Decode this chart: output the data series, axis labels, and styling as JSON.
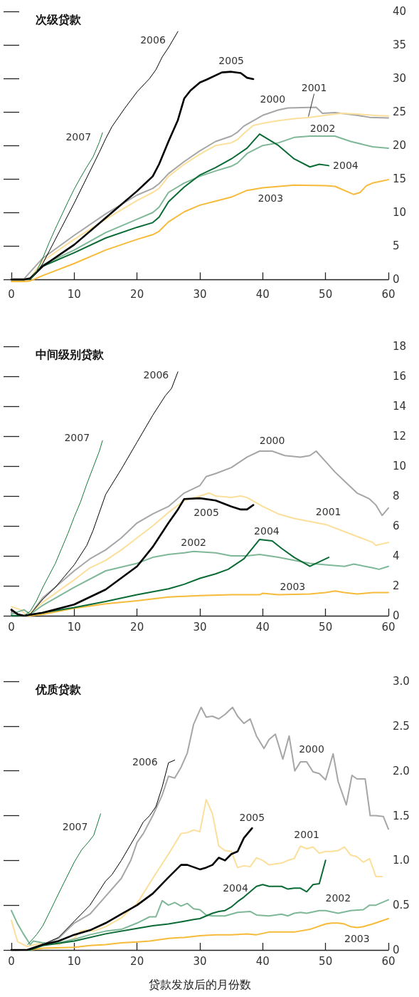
{
  "chart_data": [
    {
      "type": "line",
      "title": "次级贷款",
      "xlim": [
        0,
        60
      ],
      "xticks": [
        0,
        10,
        20,
        30,
        40,
        50,
        60
      ],
      "ylim": [
        -0.5,
        40
      ],
      "yticks": [
        0,
        5,
        10,
        15,
        20,
        25,
        30,
        35,
        40
      ],
      "grid": false,
      "legend": false,
      "marker": "none",
      "series": [
        {
          "name": "2000",
          "color": "#a6a6a6",
          "x": [
            0,
            2,
            5,
            10,
            15,
            20,
            22.5,
            23.5,
            25,
            27.5,
            30,
            32.5,
            35,
            36,
            37,
            40,
            42.5,
            44,
            48.5,
            49.5,
            51.5,
            55,
            57,
            60
          ],
          "values": [
            0.1,
            0.1,
            3.2,
            6.6,
            9.8,
            12.6,
            13.6,
            14.3,
            15.8,
            17.6,
            19.2,
            20.6,
            21.4,
            22,
            22.9,
            24.5,
            25.3,
            25.6,
            25.7,
            24.8,
            24.9,
            24.5,
            24.2,
            24.1
          ]
        },
        {
          "name": "2001",
          "color": "#fbdf9a",
          "x": [
            0,
            2,
            3,
            5,
            10,
            15,
            20,
            22.5,
            23.5,
            25,
            27.5,
            30,
            32.5,
            35,
            36,
            37,
            38.5,
            40,
            42.5,
            45,
            47.5,
            50,
            52.5,
            55,
            57.5,
            60
          ],
          "values": [
            -0.1,
            -0.1,
            0.2,
            2.8,
            6,
            9,
            11.8,
            13,
            13.6,
            15.4,
            17.2,
            18.7,
            20,
            20.4,
            20.9,
            21.8,
            23,
            23.3,
            23.7,
            24,
            24.2,
            24.5,
            24.8,
            24.7,
            24.5,
            24.4
          ]
        },
        {
          "name": "2002",
          "color": "#7fb898",
          "x": [
            0,
            2,
            3,
            5,
            10,
            15,
            20,
            22.5,
            23.5,
            25,
            27.5,
            30,
            32.5,
            35,
            36,
            37.5,
            40,
            42.5,
            45,
            47.5,
            51.5,
            54,
            57.5,
            60
          ],
          "values": [
            0,
            0,
            0.1,
            2.2,
            4.4,
            7,
            9,
            10,
            10.8,
            13,
            14.4,
            15.4,
            16.2,
            16.9,
            17.4,
            18.8,
            20,
            20.4,
            21.2,
            21.4,
            21.4,
            20.6,
            19.8,
            19.6
          ]
        },
        {
          "name": "2003",
          "color": "#f6bb3a",
          "x": [
            0,
            2,
            3,
            5,
            10,
            15,
            20,
            22.5,
            23.5,
            25,
            27.5,
            30,
            32.5,
            35,
            37.5,
            40,
            45,
            50,
            51.5,
            54.5,
            55.5,
            56.5,
            57.5,
            60
          ],
          "values": [
            -0.3,
            -0.3,
            -0.2,
            0.6,
            2.4,
            4.4,
            6,
            6.7,
            7.2,
            8.6,
            10.1,
            11.1,
            11.7,
            12.3,
            13.3,
            13.7,
            14.1,
            14,
            13.9,
            12.7,
            13,
            14,
            14.4,
            14.9
          ]
        },
        {
          "name": "2004",
          "color": "#0b6b35",
          "x": [
            0,
            2,
            3,
            5,
            10,
            15,
            20,
            22.5,
            23.5,
            25,
            27.5,
            30,
            32.5,
            35,
            37.5,
            39.5,
            42.5,
            45,
            47.5,
            49,
            50.5
          ],
          "values": [
            0,
            0,
            0.1,
            2,
            4,
            6.2,
            7.8,
            8.5,
            9.3,
            11.6,
            13.8,
            15.6,
            16.7,
            18,
            19.6,
            21.7,
            20,
            18,
            16.8,
            17.2,
            17
          ]
        },
        {
          "name": "2005",
          "color": "#000000",
          "x": [
            0,
            2,
            3,
            5,
            10,
            15,
            20,
            22.5,
            23.5,
            25,
            26.5,
            27.5,
            28.5,
            30,
            31,
            33.5,
            35,
            36.5,
            37.5,
            38.5
          ],
          "values": [
            0,
            0,
            0.2,
            2,
            5.2,
            9.2,
            13.2,
            15.4,
            17.2,
            20.6,
            23.8,
            27,
            28.2,
            29.4,
            29.8,
            30.9,
            31,
            30.8,
            30.1,
            29.9
          ]
        },
        {
          "name": "2006",
          "color": "#000000",
          "x": [
            3,
            4,
            5,
            6,
            7,
            8,
            9,
            10,
            12,
            14,
            15,
            16,
            18,
            20,
            22,
            23,
            24,
            25,
            26.5
          ],
          "values": [
            0,
            1,
            2.4,
            4.2,
            6,
            7.8,
            9.6,
            11.4,
            15.2,
            19,
            21,
            22.8,
            25.5,
            28,
            30,
            31.3,
            33.2,
            34.6,
            37
          ]
        },
        {
          "name": "2007",
          "color": "#157a3a",
          "x": [
            3,
            4,
            5,
            6,
            7,
            8,
            9,
            10,
            11,
            12,
            13,
            14,
            14.5
          ],
          "values": [
            0,
            1.2,
            3.2,
            5.5,
            7.6,
            9.6,
            11.6,
            13.5,
            15.2,
            16.8,
            18.3,
            20.5,
            21.9
          ]
        }
      ]
    },
    {
      "type": "line",
      "title": "中间级别贷款",
      "xlim": [
        0,
        60
      ],
      "xticks": [
        0,
        10,
        20,
        30,
        40,
        50,
        60
      ],
      "ylim": [
        0,
        18
      ],
      "yticks": [
        0,
        2,
        4,
        6,
        8,
        10,
        12,
        14,
        16,
        18
      ],
      "grid": false,
      "legend": false,
      "marker": "none",
      "series": [
        {
          "name": "2000",
          "color": "#a6a6a6",
          "x": [
            0,
            2,
            3,
            5,
            7.5,
            10,
            12.5,
            15,
            17.5,
            20,
            22.5,
            25,
            27.5,
            30,
            31,
            32.5,
            35,
            37.5,
            39.5,
            41.5,
            43.5,
            46,
            47.5,
            48.5,
            50,
            51.5,
            53,
            55,
            57,
            58,
            59,
            60
          ],
          "values": [
            0.2,
            0,
            0.1,
            1.2,
            2.1,
            3,
            3.8,
            4.4,
            5.2,
            6.2,
            6.8,
            7.3,
            8.2,
            8.7,
            9.3,
            9.5,
            9.9,
            10.6,
            11,
            11,
            10.7,
            10.6,
            10.7,
            11,
            10.3,
            9.6,
            9,
            8.2,
            7.8,
            7.4,
            6.7,
            7.2
          ]
        },
        {
          "name": "2001",
          "color": "#fbdf9a",
          "x": [
            0,
            1.5,
            2.5,
            5,
            10,
            12.5,
            15,
            17.5,
            20,
            22.5,
            25,
            27.5,
            30,
            31.5,
            32.5,
            35,
            36.5,
            37.5,
            40,
            42.5,
            45,
            47.5,
            50,
            52.5,
            55,
            57.5,
            58,
            60
          ],
          "values": [
            0.6,
            0.4,
            0,
            0.9,
            2.4,
            3.2,
            3.7,
            4.4,
            5.2,
            6,
            6.9,
            7.7,
            8,
            8.2,
            8,
            7.9,
            8,
            7.9,
            7.3,
            6.8,
            6.5,
            6.3,
            6.1,
            5.7,
            5.3,
            4.9,
            4.7,
            4.9
          ]
        },
        {
          "name": "2002",
          "color": "#7fb898",
          "x": [
            0,
            2,
            3,
            5,
            10,
            15,
            20,
            22.5,
            25,
            27.5,
            29,
            32.5,
            35,
            37.5,
            39.5,
            42.5,
            45,
            47.5,
            50,
            53,
            54.5,
            57.5,
            58.5,
            60
          ],
          "values": [
            0.1,
            0.4,
            0.1,
            0.7,
            1.9,
            3,
            3.5,
            3.9,
            4.1,
            4.2,
            4.3,
            4.2,
            4,
            4,
            4.1,
            3.9,
            3.7,
            3.5,
            3.4,
            3.3,
            3.45,
            3.2,
            3.1,
            3.3
          ]
        },
        {
          "name": "2003",
          "color": "#f6bb3a",
          "x": [
            0,
            3,
            5,
            10,
            15,
            20,
            25,
            30,
            35,
            39.5,
            40,
            42.5,
            47.5,
            50,
            51.5,
            53,
            55,
            57.5,
            60
          ],
          "values": [
            0,
            0,
            0.1,
            0.5,
            0.8,
            1,
            1.25,
            1.35,
            1.4,
            1.4,
            1.5,
            1.4,
            1.45,
            1.55,
            1.65,
            1.55,
            1.45,
            1.55,
            1.55
          ]
        },
        {
          "name": "2004",
          "color": "#0b6b35",
          "x": [
            0,
            2,
            5,
            10,
            15,
            20,
            25,
            27.5,
            30,
            32.5,
            34.5,
            37,
            39.5,
            41.5,
            43,
            45,
            47.5,
            50.5
          ],
          "values": [
            0,
            0,
            0.2,
            0.55,
            0.95,
            1.4,
            1.8,
            2.1,
            2.5,
            2.8,
            3.1,
            3.8,
            5.1,
            5,
            4.5,
            3.9,
            3.3,
            3.9
          ]
        },
        {
          "name": "2005",
          "color": "#000000",
          "x": [
            0,
            1,
            2,
            5,
            10,
            15,
            20,
            22.5,
            25,
            26.5,
            27.5,
            30,
            32.5,
            35,
            36.5,
            37.5,
            38.5
          ],
          "values": [
            0.4,
            0.1,
            0,
            0.2,
            0.75,
            1.75,
            3.3,
            4.6,
            6.2,
            7.1,
            7.8,
            7.85,
            7.7,
            7.3,
            7.1,
            7.1,
            7.4
          ]
        },
        {
          "name": "2006",
          "color": "#000000",
          "x": [
            1,
            2,
            3,
            5,
            7,
            10,
            12,
            13,
            14,
            15,
            17.5,
            20,
            22.5,
            24.5,
            25.5,
            26.5
          ],
          "values": [
            0.1,
            0,
            0.1,
            1.1,
            1.9,
            3.4,
            4.7,
            5.7,
            6.9,
            8.1,
            9.8,
            11.6,
            13.4,
            14.7,
            15.2,
            16.3
          ]
        },
        {
          "name": "2007",
          "color": "#157a3a",
          "x": [
            2,
            3,
            4,
            5,
            6,
            7,
            8,
            9,
            10,
            11,
            12,
            13,
            14,
            14.5
          ],
          "values": [
            0,
            0.3,
            1,
            1.9,
            2.7,
            3.5,
            4.5,
            5.5,
            6.6,
            7.6,
            8.8,
            9.9,
            11,
            11.7
          ]
        }
      ]
    },
    {
      "type": "line",
      "title": "优质贷款",
      "xlabel": "贷款发放后的月份数",
      "xlim": [
        0,
        60
      ],
      "xticks": [
        0,
        10,
        20,
        30,
        40,
        50,
        60
      ],
      "ylim": [
        0,
        3
      ],
      "yticks": [
        0,
        0.5,
        {
          "value": 1,
          "label": "1.0"
        },
        1.5,
        {
          "value": 2,
          "label": "2.0"
        },
        2.5,
        {
          "value": 3,
          "label": "3.0"
        }
      ],
      "grid": false,
      "legend": false,
      "marker": "none",
      "series": [
        {
          "name": "2000",
          "color": "#a6a6a6",
          "x": [
            0,
            3,
            5,
            7.5,
            10,
            12.5,
            15,
            17.5,
            19,
            20,
            21,
            22.5,
            24,
            25,
            26,
            27,
            28,
            29,
            30.2,
            31,
            32,
            33,
            34,
            35.2,
            36,
            37,
            38,
            39,
            40.2,
            41,
            42,
            43.2,
            44.2,
            45.1,
            46,
            47,
            48,
            49,
            50,
            51.2,
            52,
            53.3,
            54.2,
            55,
            56.3,
            57.1,
            58,
            59.2,
            60
          ],
          "values": [
            0,
            0,
            0.06,
            0.13,
            0.3,
            0.4,
            0.6,
            0.8,
            1,
            1.2,
            1.3,
            1.5,
            1.73,
            1.94,
            1.92,
            2.04,
            2.2,
            2.52,
            2.71,
            2.6,
            2.61,
            2.58,
            2.63,
            2.71,
            2.61,
            2.53,
            2.58,
            2.39,
            2.25,
            2.35,
            2.41,
            2.13,
            2.39,
            2,
            2.1,
            2.1,
            1.99,
            1.97,
            1.9,
            2.19,
            1.88,
            1.62,
            1.95,
            1.91,
            1.91,
            1.5,
            1.5,
            1.49,
            1.35
          ]
        },
        {
          "name": "2001",
          "color": "#fbdf9a",
          "x": [
            0,
            1,
            2.5,
            5,
            7.5,
            10,
            11,
            12,
            13,
            15,
            17.5,
            20,
            22.5,
            25,
            27,
            28,
            29,
            30,
            31,
            32,
            33,
            34,
            35,
            36,
            37,
            38,
            39,
            40,
            41,
            42,
            43,
            44,
            45,
            46,
            47,
            48,
            49,
            50,
            51,
            52,
            53,
            54,
            55,
            56,
            57,
            58,
            59
          ],
          "values": [
            0.33,
            0.09,
            0.04,
            0.08,
            0.06,
            0.13,
            0.21,
            0.22,
            0.21,
            0.26,
            0.36,
            0.52,
            0.8,
            1.07,
            1.3,
            1.31,
            1.34,
            1.32,
            1.68,
            1.52,
            1.16,
            1.11,
            1.1,
            0.92,
            0.94,
            0.93,
            1.03,
            1,
            0.95,
            0.96,
            0.97,
            1,
            1.02,
            1.16,
            1.13,
            1.15,
            1.08,
            1.1,
            1.1,
            1.11,
            1.15,
            1.06,
            1.04,
            0.98,
            1.02,
            0.82,
            0.82
          ]
        },
        {
          "name": "2002",
          "color": "#7fb898",
          "x": [
            0,
            1,
            2,
            3,
            3.5,
            5,
            7.5,
            10,
            12.5,
            15,
            17.5,
            20,
            22,
            23,
            24,
            25,
            26,
            27,
            28,
            29,
            30,
            31,
            32,
            34,
            35,
            36,
            38,
            39,
            41,
            43,
            44,
            45,
            46,
            47,
            49,
            50,
            52,
            54,
            56,
            57,
            58,
            60
          ],
          "values": [
            0.44,
            0.29,
            0.17,
            0.06,
            0.1,
            0.08,
            0.08,
            0.12,
            0.17,
            0.21,
            0.23,
            0.3,
            0.37,
            0.37,
            0.55,
            0.5,
            0.53,
            0.49,
            0.52,
            0.46,
            0.45,
            0.39,
            0.38,
            0.38,
            0.4,
            0.42,
            0.43,
            0.39,
            0.38,
            0.4,
            0.38,
            0.41,
            0.42,
            0.41,
            0.44,
            0.44,
            0.41,
            0.44,
            0.45,
            0.5,
            0.5,
            0.56
          ]
        },
        {
          "name": "2003",
          "color": "#f6bb3a",
          "x": [
            0,
            1.5,
            3,
            5,
            10,
            12.5,
            15,
            17.5,
            20,
            22,
            25,
            27.5,
            30,
            32.5,
            35,
            37.5,
            39,
            41,
            45,
            47.5,
            50,
            51,
            52,
            53,
            54,
            55,
            56,
            57.5,
            60
          ],
          "values": [
            0,
            0,
            0,
            0.02,
            0.03,
            0.05,
            0.06,
            0.08,
            0.09,
            0.1,
            0.13,
            0.14,
            0.16,
            0.17,
            0.17,
            0.18,
            0.17,
            0.2,
            0.2,
            0.23,
            0.29,
            0.3,
            0.3,
            0.29,
            0.26,
            0.25,
            0.26,
            0.29,
            0.35
          ]
        },
        {
          "name": "2004",
          "color": "#0b6b35",
          "x": [
            0,
            3,
            5,
            10,
            15,
            20,
            22.5,
            25,
            27.5,
            29,
            30,
            32,
            33,
            34,
            35,
            36,
            37,
            38,
            39,
            40,
            41,
            42,
            43,
            44,
            45,
            46,
            47,
            48,
            49,
            50
          ],
          "values": [
            0,
            0,
            0.05,
            0.1,
            0.18,
            0.24,
            0.27,
            0.29,
            0.32,
            0.34,
            0.35,
            0.41,
            0.43,
            0.44,
            0.48,
            0.54,
            0.59,
            0.65,
            0.71,
            0.73,
            0.71,
            0.71,
            0.71,
            0.68,
            0.69,
            0.69,
            0.65,
            0.73,
            0.74,
            1
          ]
        },
        {
          "name": "2005",
          "color": "#000000",
          "x": [
            0,
            2.5,
            5,
            7.5,
            10,
            12.5,
            15,
            17.5,
            20,
            22.5,
            25,
            27,
            28,
            30,
            31,
            32,
            33,
            34,
            35,
            36,
            37,
            38.3
          ],
          "values": [
            0,
            0,
            0.06,
            0.1,
            0.17,
            0.22,
            0.3,
            0.4,
            0.5,
            0.63,
            0.81,
            0.95,
            0.95,
            0.9,
            0.92,
            0.95,
            1.03,
            1,
            1.07,
            1.1,
            1.25,
            1.36
          ]
        },
        {
          "name": "2006",
          "color": "#000000",
          "x": [
            3,
            5,
            7.5,
            10,
            12.5,
            15,
            16,
            17.5,
            20,
            21,
            22,
            23,
            24,
            25,
            26
          ],
          "values": [
            0.01,
            0.06,
            0.14,
            0.32,
            0.5,
            0.77,
            0.84,
            1,
            1.3,
            1.43,
            1.5,
            1.6,
            1.82,
            2.09,
            2.12
          ]
        },
        {
          "name": "2007",
          "color": "#157a3a",
          "x": [
            2.6,
            4,
            5,
            6.2,
            8,
            10,
            11.2,
            12.2,
            13.1,
            14.2
          ],
          "values": [
            0.06,
            0.17,
            0.27,
            0.44,
            0.7,
            0.98,
            1.12,
            1.2,
            1.28,
            1.52
          ]
        }
      ]
    }
  ]
}
